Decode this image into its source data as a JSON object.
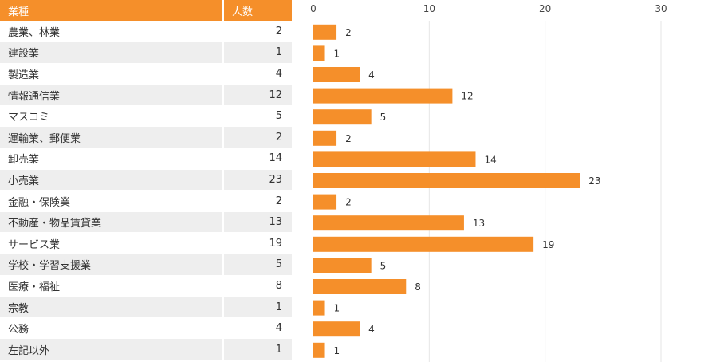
{
  "table": {
    "header_industry": "業種",
    "header_count": "人数"
  },
  "chart_data": {
    "type": "bar",
    "orientation": "horizontal",
    "categories": [
      "農業、林業",
      "建設業",
      "製造業",
      "情報通信業",
      "マスコミ",
      "運輸業、郵便業",
      "卸売業",
      "小売業",
      "金融・保険業",
      "不動産・物品賃貸業",
      "サービス業",
      "学校・学習支援業",
      "医療・福祉",
      "宗教",
      "公務",
      "左記以外"
    ],
    "values": [
      2,
      1,
      4,
      12,
      5,
      2,
      14,
      23,
      2,
      13,
      19,
      5,
      8,
      1,
      4,
      1
    ],
    "xlim": [
      0,
      30
    ],
    "xticks": [
      0,
      10,
      20,
      30
    ],
    "xtick_labels": [
      "0",
      "10",
      "20",
      "30"
    ],
    "title": "",
    "xlabel": "",
    "ylabel": "",
    "grid": true,
    "colors": {
      "bar": "#f58f2a",
      "header": "#f58f2a"
    }
  }
}
